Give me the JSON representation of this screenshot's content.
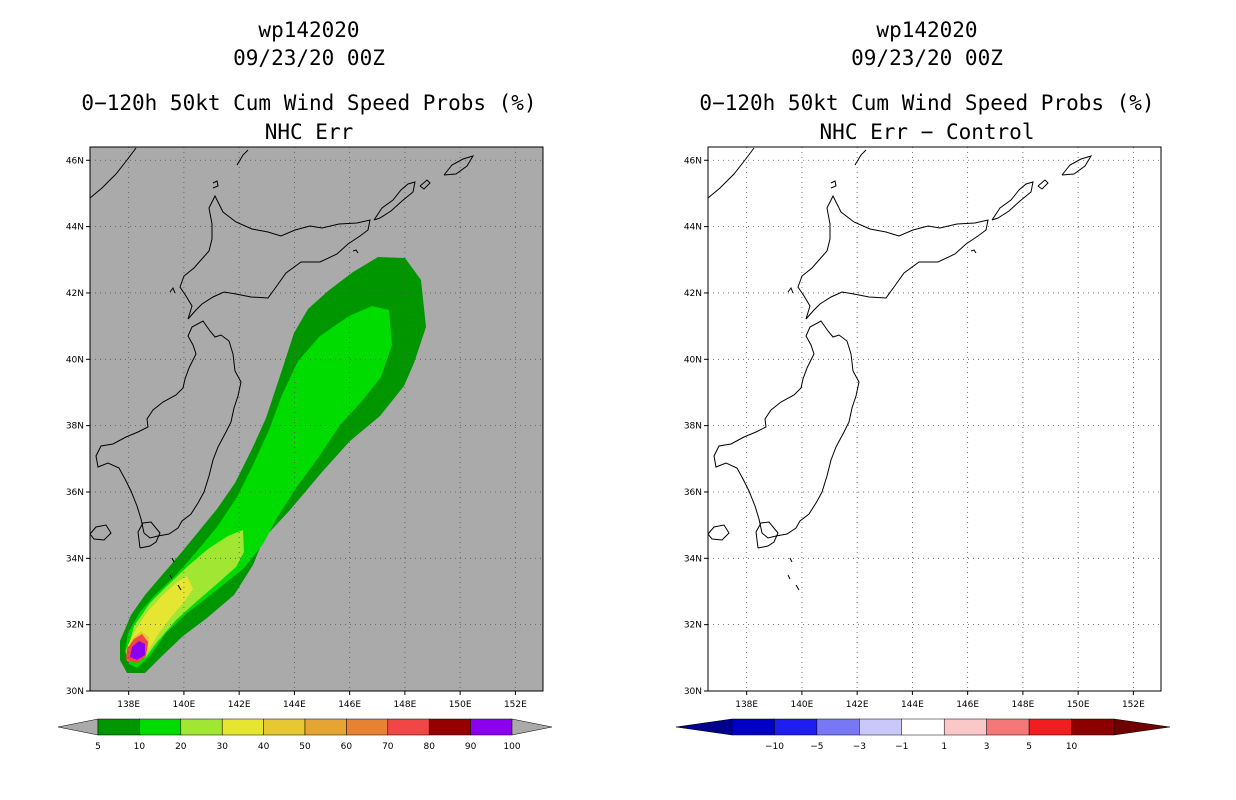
{
  "left": {
    "title1": "wp142020",
    "title2": "09/23/20 00Z",
    "title3": "0−120h 50kt Cum Wind Speed Probs (%)",
    "title4": "NHC Err",
    "background_color": "#aaaaaa",
    "colorbar": {
      "colors": [
        "#009600",
        "#00dc00",
        "#a0e632",
        "#e6e632",
        "#e6c832",
        "#e6a532",
        "#e68232",
        "#f04646",
        "#960000",
        "#8c00f0"
      ],
      "labels": [
        "5",
        "10",
        "20",
        "30",
        "40",
        "50",
        "60",
        "70",
        "80",
        "90",
        "100"
      ]
    }
  },
  "right": {
    "title1": "wp142020",
    "title2": "09/23/20 00Z",
    "title3": "0−120h 50kt Cum Wind Speed Probs (%)",
    "title4": "NHC Err − Control",
    "background_color": "#ffffff",
    "colorbar": {
      "colors": [
        "#0000c8",
        "#1e1ef0",
        "#7878f5",
        "#c8c8fa",
        "#ffffff",
        "#fac8c8",
        "#f57878",
        "#f01e1e",
        "#8c0000"
      ],
      "labels": [
        "−10",
        "−5",
        "−3",
        "−1",
        "1",
        "3",
        "5",
        "10"
      ]
    }
  },
  "map": {
    "lat_labels": [
      "46N",
      "44N",
      "42N",
      "40N",
      "38N",
      "36N",
      "34N",
      "32N",
      "30N"
    ],
    "lon_labels": [
      "138E",
      "140E",
      "142E",
      "144E",
      "146E",
      "148E",
      "150E",
      "152E"
    ]
  }
}
